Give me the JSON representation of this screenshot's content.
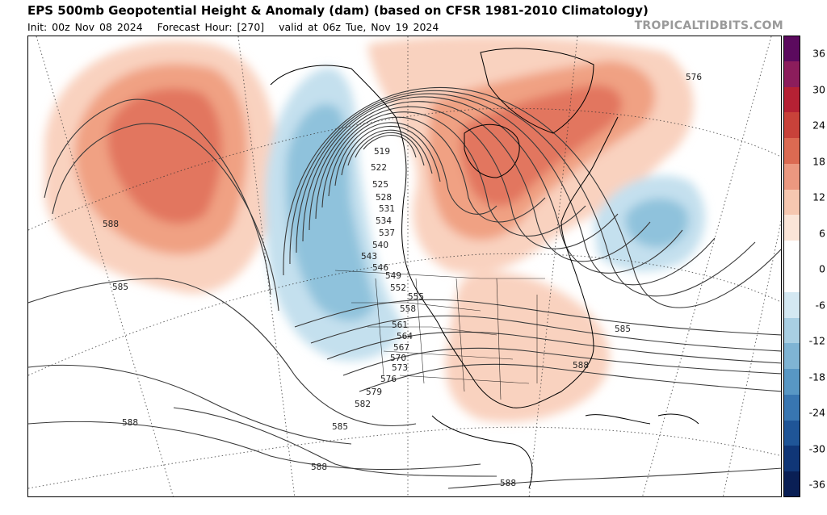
{
  "header": {
    "title": "EPS 500mb Geopotential Height & Anomaly (dam) (based on CFSR 1981-2010 Climatology)",
    "init": "Init: 00z Nov 08 2024",
    "forecast_hour": "Forecast Hour: [270]",
    "valid": "valid at 06z Tue, Nov 19 2024",
    "credit": "TROPICALTIDBITS.COM"
  },
  "map": {
    "region": "North America",
    "field": "500mb geopotential height (dam) with anomaly shading",
    "contour_labels": [
      "519",
      "522",
      "525",
      "528",
      "531",
      "534",
      "537",
      "540",
      "543",
      "546",
      "549",
      "552",
      "555",
      "558",
      "561",
      "564",
      "567",
      "570",
      "573",
      "576",
      "579",
      "582",
      "585",
      "588",
      "576",
      "585",
      "588",
      "585",
      "588",
      "588",
      "588",
      "588",
      "585"
    ],
    "anomaly_colors": {
      "positive": "#e8735a",
      "positive_light": "#f8cdb8",
      "negative": "#84bcd8",
      "negative_light": "#bfdcec"
    }
  },
  "colorbar": {
    "ticks": [
      "36",
      "30",
      "24",
      "18",
      "12",
      "6",
      "0",
      "-6",
      "-12",
      "-18",
      "-24",
      "-30",
      "-36"
    ],
    "colors": [
      "#5b0a5e",
      "#8c1d5c",
      "#b52134",
      "#c8423a",
      "#db6a52",
      "#eb9880",
      "#f6c7b0",
      "#fbe5d8",
      "#ffffff",
      "#ffffff",
      "#d4e8f2",
      "#a9cfe3",
      "#7fb4d4",
      "#5897c4",
      "#3876b1",
      "#1f5597",
      "#103677",
      "#0a1f55"
    ]
  }
}
